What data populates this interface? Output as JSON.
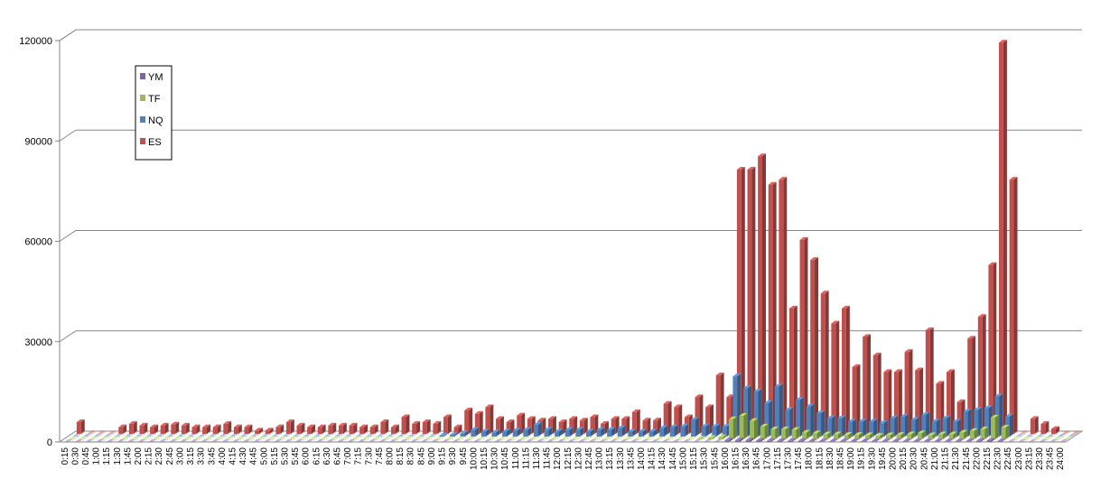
{
  "chart_data": {
    "type": "bar",
    "subtype": "3d-column-grouped",
    "title": "",
    "xlabel": "",
    "ylabel": "",
    "ylim": [
      0,
      120000
    ],
    "y_ticks": [
      "0",
      "30000",
      "60000",
      "90000",
      "120000"
    ],
    "grid": "horizontal",
    "legend_position": "top-left",
    "categories": [
      "0:15",
      "0:30",
      "0:45",
      "1:00",
      "1:15",
      "1:30",
      "1:45",
      "2:00",
      "2:15",
      "2:30",
      "2:45",
      "3:00",
      "3:15",
      "3:30",
      "3:45",
      "4:00",
      "4:15",
      "4:30",
      "4:45",
      "5:00",
      "5:15",
      "5:30",
      "5:45",
      "6:00",
      "6:15",
      "6:30",
      "6:45",
      "7:00",
      "7:15",
      "7:30",
      "7:45",
      "8:00",
      "8:15",
      "8:30",
      "8:45",
      "9:00",
      "9:15",
      "9:30",
      "9:45",
      "10:00",
      "10:15",
      "10:30",
      "10:45",
      "11:00",
      "11:15",
      "11:30",
      "11:45",
      "12:00",
      "12:15",
      "12:30",
      "12:45",
      "13:00",
      "13:15",
      "13:30",
      "13:45",
      "14:00",
      "14:15",
      "14:30",
      "14:45",
      "15:00",
      "15:15",
      "15:30",
      "15:45",
      "16:00",
      "16:15",
      "16:30",
      "16:45",
      "17:00",
      "17:15",
      "17:30",
      "17:45",
      "18:00",
      "18:15",
      "18:30",
      "18:45",
      "19:00",
      "19:15",
      "19:30",
      "19:45",
      "20:00",
      "20:15",
      "20:30",
      "20:45",
      "21:00",
      "21:15",
      "21:30",
      "21:45",
      "22:00",
      "22:15",
      "22:30",
      "22:45",
      "23:00",
      "23:15",
      "23:30",
      "23:45",
      "24:00"
    ],
    "series": [
      {
        "name": "YM",
        "color": "#8064a2",
        "values": [
          0,
          0,
          0,
          0,
          0,
          0,
          0,
          0,
          0,
          0,
          0,
          0,
          0,
          0,
          0,
          0,
          0,
          0,
          0,
          0,
          0,
          0,
          0,
          0,
          0,
          0,
          0,
          0,
          0,
          0,
          0,
          0,
          0,
          0,
          0,
          0,
          0,
          0,
          0,
          0,
          0,
          0,
          0,
          0,
          0,
          0,
          0,
          0,
          0,
          0,
          0,
          0,
          0,
          0,
          0,
          0,
          0,
          0,
          0,
          0,
          0,
          0,
          0,
          500,
          500,
          500,
          400,
          300,
          300,
          300,
          300,
          200,
          200,
          200,
          200,
          200,
          200,
          200,
          200,
          200,
          200,
          200,
          200,
          200,
          200,
          200,
          200,
          300,
          400,
          200,
          0,
          0,
          0,
          0,
          0,
          0
        ]
      },
      {
        "name": "TF",
        "color": "#9bbb59",
        "values": [
          0,
          0,
          0,
          0,
          0,
          0,
          0,
          0,
          0,
          0,
          0,
          0,
          0,
          0,
          0,
          0,
          0,
          0,
          0,
          0,
          0,
          0,
          0,
          0,
          0,
          0,
          0,
          0,
          0,
          0,
          0,
          0,
          0,
          0,
          0,
          0,
          0,
          0,
          0,
          0,
          0,
          0,
          0,
          0,
          0,
          0,
          0,
          0,
          0,
          0,
          0,
          0,
          0,
          0,
          0,
          0,
          0,
          0,
          0,
          0,
          200,
          400,
          600,
          6000,
          7000,
          5500,
          3800,
          3000,
          3000,
          2800,
          2000,
          1800,
          1500,
          1500,
          1300,
          1300,
          1200,
          1000,
          1200,
          1300,
          1500,
          1800,
          1200,
          1500,
          1500,
          2000,
          2500,
          3000,
          6500,
          3500,
          0,
          0,
          0,
          0,
          0,
          0
        ]
      },
      {
        "name": "NQ",
        "color": "#4f81bd",
        "values": [
          0,
          0,
          0,
          0,
          0,
          0,
          0,
          0,
          0,
          0,
          0,
          0,
          0,
          0,
          0,
          0,
          0,
          0,
          0,
          0,
          0,
          0,
          0,
          0,
          0,
          0,
          0,
          0,
          0,
          0,
          0,
          0,
          0,
          0,
          0,
          300,
          500,
          1000,
          2000,
          1500,
          1200,
          1500,
          1800,
          2000,
          3500,
          2000,
          1500,
          2000,
          2000,
          1500,
          2000,
          2000,
          2500,
          1500,
          1500,
          1500,
          2500,
          2800,
          3000,
          5000,
          3000,
          3000,
          3000,
          18000,
          14500,
          13500,
          10000,
          15000,
          8000,
          11000,
          9000,
          7000,
          5500,
          5500,
          4500,
          4500,
          4500,
          4000,
          5500,
          6000,
          5000,
          6500,
          4500,
          5500,
          4500,
          7500,
          8000,
          8500,
          12000,
          6000,
          0,
          0,
          0,
          0,
          0,
          0
        ]
      },
      {
        "name": "ES",
        "color": "#c0504d",
        "values": [
          3500,
          0,
          0,
          0,
          2000,
          3000,
          2500,
          2000,
          2500,
          2800,
          2500,
          2000,
          2000,
          2000,
          3000,
          2000,
          2000,
          1000,
          1000,
          2000,
          3500,
          2500,
          2000,
          2000,
          2500,
          2500,
          2500,
          2000,
          2000,
          3500,
          2000,
          5000,
          3000,
          3500,
          3000,
          5000,
          2000,
          7000,
          6000,
          8000,
          4500,
          3500,
          5500,
          4500,
          4000,
          4500,
          3500,
          4500,
          4000,
          5000,
          3000,
          4500,
          4500,
          6500,
          4000,
          4000,
          9000,
          8000,
          5000,
          11000,
          8000,
          17500,
          11000,
          79000,
          79000,
          83000,
          74500,
          76000,
          37500,
          58000,
          52000,
          42000,
          33000,
          37500,
          20000,
          29000,
          23500,
          18500,
          18500,
          24500,
          19000,
          31000,
          15000,
          18500,
          9500,
          28500,
          35000,
          50500,
          117000,
          76000,
          0,
          4500,
          3000,
          1500,
          0,
          0
        ]
      }
    ]
  }
}
